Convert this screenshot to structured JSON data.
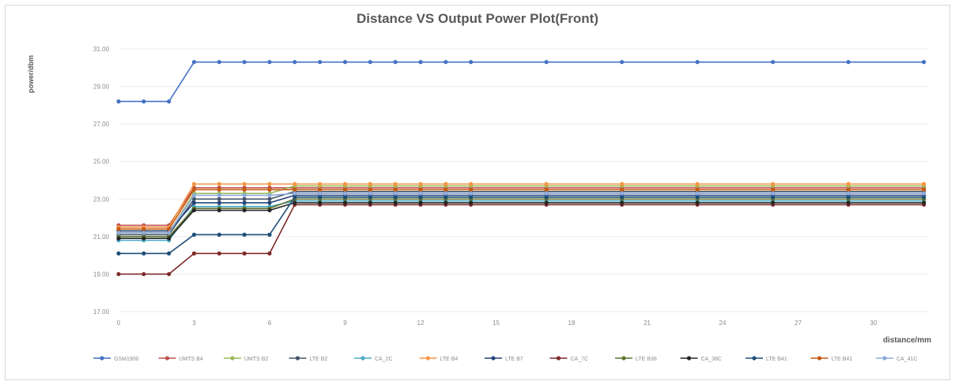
{
  "chart_data": {
    "type": "line",
    "title": "Distance VS Output Power Plot(Front)",
    "xlabel": "distance/mm",
    "ylabel": "power/dbm",
    "ylim": [
      17,
      31
    ],
    "y_ticks": [
      "17.00",
      "19.00",
      "21.00",
      "23.00",
      "25.00",
      "27.00",
      "29.00",
      "31.00"
    ],
    "y_tick_values": [
      17,
      19,
      21,
      23,
      25,
      27,
      29,
      31
    ],
    "x_ticks": [
      "0",
      "3",
      "6",
      "9",
      "12",
      "15",
      "18",
      "21",
      "24",
      "27",
      "30"
    ],
    "x_tick_values": [
      0,
      3,
      6,
      9,
      12,
      15,
      18,
      21,
      24,
      27,
      30
    ],
    "x": [
      0,
      1,
      2,
      3,
      4,
      5,
      6,
      7,
      8,
      9,
      10,
      11,
      12,
      13,
      14,
      17,
      20,
      23,
      26,
      29,
      32
    ],
    "grid": true,
    "legend_position": "bottom",
    "series": [
      {
        "name": "GSM1900",
        "color": "#4472c4",
        "values": [
          28.2,
          28.2,
          28.2,
          30.3,
          30.3,
          30.3,
          30.3,
          30.3,
          30.3,
          30.3,
          30.3,
          30.3,
          30.3,
          30.3,
          30.3,
          30.3,
          30.3,
          30.3,
          30.3,
          30.3,
          30.3
        ]
      },
      {
        "name": "UMTS B4",
        "color": "#c0504d",
        "values": [
          21.6,
          21.6,
          21.6,
          23.6,
          23.6,
          23.6,
          23.6,
          23.6,
          23.6,
          23.6,
          23.6,
          23.6,
          23.6,
          23.6,
          23.6,
          23.6,
          23.6,
          23.6,
          23.6,
          23.6,
          23.6
        ]
      },
      {
        "name": "UMTS B2",
        "color": "#9bbb59",
        "values": [
          21.2,
          21.2,
          21.2,
          23.3,
          23.3,
          23.3,
          23.3,
          23.7,
          23.7,
          23.7,
          23.7,
          23.7,
          23.7,
          23.7,
          23.7,
          23.7,
          23.7,
          23.7,
          23.7,
          23.7,
          23.7
        ]
      },
      {
        "name": "LTE B2",
        "color": "#44546a",
        "values": [
          21.1,
          21.1,
          21.1,
          23.0,
          23.0,
          23.0,
          23.0,
          23.4,
          23.4,
          23.4,
          23.4,
          23.4,
          23.4,
          23.4,
          23.4,
          23.4,
          23.4,
          23.4,
          23.4,
          23.4,
          23.4
        ]
      },
      {
        "name": "CA_2C",
        "color": "#4bacc6",
        "values": [
          20.8,
          20.8,
          20.8,
          22.6,
          22.6,
          22.6,
          22.6,
          22.9,
          22.9,
          22.9,
          22.9,
          22.9,
          22.9,
          22.9,
          22.9,
          22.9,
          22.9,
          22.9,
          22.9,
          22.9,
          22.9
        ]
      },
      {
        "name": "LTE B4",
        "color": "#f79646",
        "values": [
          21.5,
          21.5,
          21.5,
          23.8,
          23.8,
          23.8,
          23.8,
          23.8,
          23.8,
          23.8,
          23.8,
          23.8,
          23.8,
          23.8,
          23.8,
          23.8,
          23.8,
          23.8,
          23.8,
          23.8,
          23.8
        ]
      },
      {
        "name": "LTE B7",
        "color": "#264478",
        "values": [
          21.3,
          21.3,
          21.3,
          22.8,
          22.8,
          22.8,
          22.8,
          23.2,
          23.2,
          23.2,
          23.2,
          23.2,
          23.2,
          23.2,
          23.2,
          23.2,
          23.2,
          23.2,
          23.2,
          23.2,
          23.2
        ]
      },
      {
        "name": "CA_7C",
        "color": "#7f2a2a",
        "values": [
          19.0,
          19.0,
          19.0,
          20.1,
          20.1,
          20.1,
          20.1,
          22.7,
          22.7,
          22.7,
          22.7,
          22.7,
          22.7,
          22.7,
          22.7,
          22.7,
          22.7,
          22.7,
          22.7,
          22.7,
          22.7
        ]
      },
      {
        "name": "LTE B38",
        "color": "#5f7530",
        "values": [
          21.0,
          21.0,
          21.0,
          22.5,
          22.5,
          22.5,
          22.5,
          23.0,
          23.0,
          23.0,
          23.0,
          23.0,
          23.0,
          23.0,
          23.0,
          23.0,
          23.0,
          23.0,
          23.0,
          23.0,
          23.0
        ]
      },
      {
        "name": "CA_38C",
        "color": "#262626",
        "values": [
          20.9,
          20.9,
          20.9,
          22.4,
          22.4,
          22.4,
          22.4,
          22.8,
          22.8,
          22.8,
          22.8,
          22.8,
          22.8,
          22.8,
          22.8,
          22.8,
          22.8,
          22.8,
          22.8,
          22.8,
          22.8
        ]
      },
      {
        "name": "LTE B41",
        "color": "#1f4e79",
        "values": [
          20.1,
          20.1,
          20.1,
          21.1,
          21.1,
          21.1,
          21.1,
          23.1,
          23.1,
          23.1,
          23.1,
          23.1,
          23.1,
          23.1,
          23.1,
          23.1,
          23.1,
          23.1,
          23.1,
          23.1,
          23.1
        ]
      },
      {
        "name": "LTE B41",
        "color": "#c55a11",
        "values": [
          21.4,
          21.4,
          21.4,
          23.5,
          23.5,
          23.5,
          23.5,
          23.5,
          23.5,
          23.5,
          23.5,
          23.5,
          23.5,
          23.5,
          23.5,
          23.5,
          23.5,
          23.5,
          23.5,
          23.5,
          23.5
        ]
      },
      {
        "name": "CA_41C",
        "color": "#8faadc",
        "values": [
          21.2,
          21.2,
          21.2,
          23.2,
          23.2,
          23.2,
          23.2,
          23.3,
          23.3,
          23.3,
          23.3,
          23.3,
          23.3,
          23.3,
          23.3,
          23.3,
          23.3,
          23.3,
          23.3,
          23.3,
          23.3
        ]
      }
    ]
  }
}
